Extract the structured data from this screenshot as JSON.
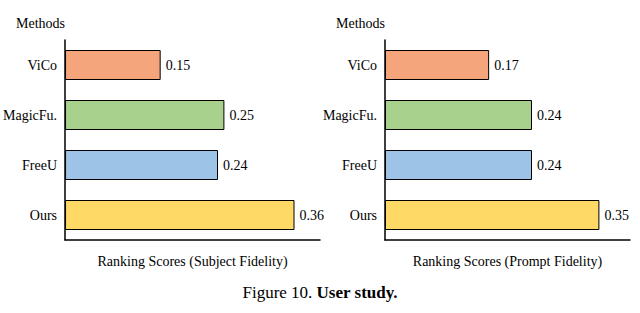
{
  "chart_data": [
    {
      "type": "bar",
      "orientation": "horizontal",
      "y_label": "Methods",
      "x_label": "Ranking Scores (Subject Fidelity)",
      "categories": [
        "ViCo",
        "MagicFu.",
        "FreeU",
        "Ours"
      ],
      "values": [
        0.15,
        0.25,
        0.24,
        0.36
      ],
      "colors": [
        "#F4A57C",
        "#A9D18E",
        "#9DC3E6",
        "#FFD966"
      ],
      "xlim": [
        0,
        0.4
      ],
      "tick_labels": "y",
      "grid": false,
      "data_labels": true
    },
    {
      "type": "bar",
      "orientation": "horizontal",
      "y_label": "Methods",
      "x_label": "Ranking Scores (Prompt Fidelity)",
      "categories": [
        "ViCo",
        "MagicFu.",
        "FreeU",
        "Ours"
      ],
      "values": [
        0.17,
        0.24,
        0.24,
        0.35
      ],
      "colors": [
        "#F4A57C",
        "#A9D18E",
        "#9DC3E6",
        "#FFD966"
      ],
      "xlim": [
        0,
        0.4
      ],
      "tick_labels": "y",
      "grid": false,
      "data_labels": true
    }
  ],
  "caption": {
    "label": "Figure 10.",
    "text": "User study."
  }
}
